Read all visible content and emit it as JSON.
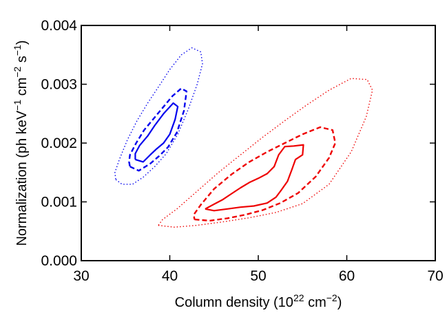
{
  "chart_data": {
    "type": "contour",
    "xlabel_parts": {
      "base": "Column density (10",
      "exp": "22",
      "mid": " cm",
      "exp2": "−2",
      "end": ")"
    },
    "ylabel_parts": {
      "base": "Normalization (ph keV",
      "e1": "−1",
      "m1": " cm",
      "e2": "−2",
      "m2": " s",
      "e3": "−1",
      "end": ")"
    },
    "xlim": [
      30,
      70
    ],
    "ylim": [
      0.0,
      0.004
    ],
    "x_ticks": [
      30,
      40,
      50,
      60,
      70
    ],
    "x_tick_labels": [
      "30",
      "40",
      "50",
      "60",
      "70"
    ],
    "y_ticks": [
      0.0,
      0.001,
      0.002,
      0.003,
      0.004
    ],
    "y_tick_labels": [
      "0.000",
      "0.001",
      "0.002",
      "0.003",
      "0.004"
    ],
    "grid": false,
    "series": [
      {
        "color": "#0000ee",
        "style": "solid",
        "points": [
          [
            36.1,
            0.00172
          ],
          [
            37.0,
            0.00168
          ],
          [
            37.8,
            0.0018
          ],
          [
            38.5,
            0.0019
          ],
          [
            39.3,
            0.002
          ],
          [
            40.0,
            0.00215
          ],
          [
            40.6,
            0.0024
          ],
          [
            40.9,
            0.00262
          ],
          [
            40.4,
            0.00268
          ],
          [
            39.3,
            0.0025
          ],
          [
            38.3,
            0.0023
          ],
          [
            37.5,
            0.00212
          ],
          [
            36.6,
            0.00196
          ],
          [
            36.1,
            0.00182
          ],
          [
            36.1,
            0.00172
          ]
        ]
      },
      {
        "color": "#0000ee",
        "style": "dashed",
        "points": [
          [
            35.5,
            0.0016
          ],
          [
            36.5,
            0.00153
          ],
          [
            37.8,
            0.00165
          ],
          [
            38.8,
            0.00178
          ],
          [
            39.8,
            0.00193
          ],
          [
            40.8,
            0.00218
          ],
          [
            41.6,
            0.00255
          ],
          [
            41.9,
            0.00288
          ],
          [
            41.3,
            0.00293
          ],
          [
            40.3,
            0.0028
          ],
          [
            39.2,
            0.0026
          ],
          [
            38.2,
            0.00242
          ],
          [
            37.1,
            0.00222
          ],
          [
            36.2,
            0.002
          ],
          [
            35.5,
            0.0018
          ],
          [
            35.4,
            0.00168
          ],
          [
            35.5,
            0.0016
          ]
        ]
      },
      {
        "color": "#0000ee",
        "style": "dotted",
        "points": [
          [
            33.9,
            0.00138
          ],
          [
            34.6,
            0.0013
          ],
          [
            35.8,
            0.0013
          ],
          [
            37.0,
            0.00142
          ],
          [
            38.3,
            0.0016
          ],
          [
            39.6,
            0.00182
          ],
          [
            40.9,
            0.00215
          ],
          [
            42.1,
            0.00258
          ],
          [
            43.1,
            0.003
          ],
          [
            43.7,
            0.00335
          ],
          [
            43.5,
            0.00355
          ],
          [
            42.5,
            0.00362
          ],
          [
            41.3,
            0.0035
          ],
          [
            40.0,
            0.00325
          ],
          [
            38.7,
            0.00295
          ],
          [
            37.5,
            0.00268
          ],
          [
            36.3,
            0.00238
          ],
          [
            35.2,
            0.00205
          ],
          [
            34.3,
            0.00172
          ],
          [
            33.8,
            0.0015
          ],
          [
            33.9,
            0.00138
          ]
        ]
      },
      {
        "color": "#ee0000",
        "style": "solid",
        "points": [
          [
            44.0,
            0.00088
          ],
          [
            45.0,
            0.00085
          ],
          [
            46.5,
            0.00088
          ],
          [
            48.0,
            0.00091
          ],
          [
            49.5,
            0.00093
          ],
          [
            51.0,
            0.00098
          ],
          [
            52.0,
            0.00108
          ],
          [
            52.6,
            0.0012
          ],
          [
            53.3,
            0.00135
          ],
          [
            53.8,
            0.00155
          ],
          [
            54.2,
            0.00172
          ],
          [
            55.0,
            0.0018
          ],
          [
            55.1,
            0.00197
          ],
          [
            54.0,
            0.00195
          ],
          [
            53.0,
            0.00194
          ],
          [
            52.3,
            0.0018
          ],
          [
            51.8,
            0.0016
          ],
          [
            51.0,
            0.00148
          ],
          [
            50.0,
            0.0014
          ],
          [
            49.0,
            0.00133
          ],
          [
            48.0,
            0.00124
          ],
          [
            47.0,
            0.00114
          ],
          [
            46.0,
            0.00104
          ],
          [
            45.0,
            0.00096
          ],
          [
            44.0,
            0.00088
          ]
        ]
      },
      {
        "color": "#ee0000",
        "style": "dashed",
        "points": [
          [
            42.8,
            0.0007
          ],
          [
            44.5,
            0.00068
          ],
          [
            46.5,
            0.00072
          ],
          [
            48.5,
            0.00078
          ],
          [
            50.5,
            0.00086
          ],
          [
            52.5,
            0.00098
          ],
          [
            54.5,
            0.00115
          ],
          [
            56.5,
            0.00143
          ],
          [
            58.0,
            0.00175
          ],
          [
            58.7,
            0.002
          ],
          [
            58.4,
            0.00222
          ],
          [
            57.0,
            0.00227
          ],
          [
            55.0,
            0.00215
          ],
          [
            53.0,
            0.002
          ],
          [
            51.0,
            0.00185
          ],
          [
            49.0,
            0.00168
          ],
          [
            47.0,
            0.00147
          ],
          [
            45.0,
            0.00122
          ],
          [
            43.5,
            0.00095
          ],
          [
            42.7,
            0.00078
          ],
          [
            42.8,
            0.0007
          ]
        ]
      },
      {
        "color": "#ee0000",
        "style": "dotted",
        "points": [
          [
            38.7,
            0.0006
          ],
          [
            40.5,
            0.00057
          ],
          [
            43.0,
            0.0006
          ],
          [
            46.0,
            0.00066
          ],
          [
            49.0,
            0.00073
          ],
          [
            52.0,
            0.00082
          ],
          [
            55.0,
            0.00097
          ],
          [
            58.0,
            0.0013
          ],
          [
            60.5,
            0.00185
          ],
          [
            62.2,
            0.00245
          ],
          [
            62.9,
            0.0029
          ],
          [
            62.3,
            0.00308
          ],
          [
            60.5,
            0.0031
          ],
          [
            58.0,
            0.0029
          ],
          [
            55.5,
            0.00265
          ],
          [
            53.0,
            0.00238
          ],
          [
            50.5,
            0.0021
          ],
          [
            48.0,
            0.0018
          ],
          [
            45.5,
            0.0015
          ],
          [
            43.0,
            0.00117
          ],
          [
            40.8,
            0.00088
          ],
          [
            39.2,
            0.0007
          ],
          [
            38.7,
            0.0006
          ]
        ]
      }
    ]
  }
}
